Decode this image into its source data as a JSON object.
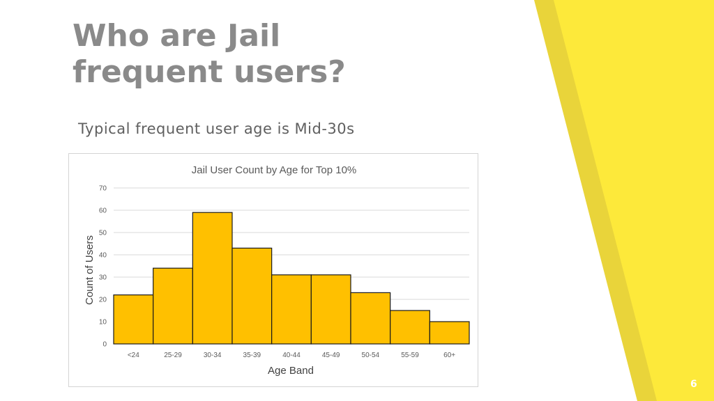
{
  "slide": {
    "title_line1": "Who are Jail",
    "title_line2": "frequent users?",
    "subtitle": "Typical frequent user age is Mid-30s",
    "page_number": "6"
  },
  "colors": {
    "bar_fill": "#ffc000",
    "bar_stroke": "#1a1a1a",
    "accent_light": "#fde93a",
    "accent_dark": "#e9d43a",
    "title": "#8a8a8a"
  },
  "chart_data": {
    "type": "bar",
    "title": "Jail User Count by Age for Top 10%",
    "xlabel": "Age Band",
    "ylabel": "Count of Users",
    "categories": [
      "<24",
      "25-29",
      "30-34",
      "35-39",
      "40-44",
      "45-49",
      "50-54",
      "55-59",
      "60+"
    ],
    "values": [
      22,
      34,
      59,
      43,
      31,
      31,
      23,
      15,
      10
    ],
    "ylim": [
      0,
      70
    ],
    "yticks": [
      0,
      10,
      20,
      30,
      40,
      50,
      60,
      70
    ],
    "grid": true
  }
}
